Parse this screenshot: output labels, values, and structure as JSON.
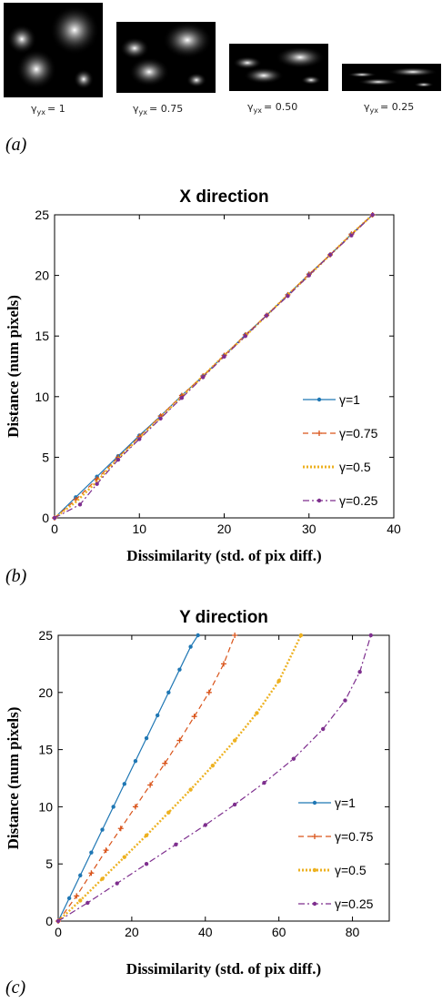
{
  "panel_a": {
    "label": "(a)",
    "tiles": [
      {
        "gamma_symbol": "γ",
        "subscript": "yx",
        "value": "= 1"
      },
      {
        "gamma_symbol": "γ",
        "subscript": "yx",
        "value": "= 0.75"
      },
      {
        "gamma_symbol": "γ",
        "subscript": "yx",
        "value": "= 0.50"
      },
      {
        "gamma_symbol": "γ",
        "subscript": "yx",
        "value": "= 0.25"
      }
    ]
  },
  "panel_b": {
    "label": "(b)"
  },
  "panel_c": {
    "label": "(c)"
  },
  "chart_data": [
    {
      "type": "line",
      "title": "X direction",
      "xlabel": "Dissimilarity (std. of pix diff.)",
      "ylabel": "Distance (num pixels)",
      "xlim": [
        0,
        40
      ],
      "ylim": [
        0,
        25
      ],
      "xticks": [
        0,
        10,
        20,
        30,
        40
      ],
      "yticks": [
        0,
        5,
        10,
        15,
        20,
        25
      ],
      "grid": false,
      "legend_position": "lower-right",
      "series": [
        {
          "name": "γ=1",
          "color": "#1f77b4",
          "style": "solid",
          "marker": "dot",
          "x": [
            0,
            2.5,
            5,
            7.5,
            10,
            12.5,
            15,
            17.5,
            20,
            22.5,
            25,
            27.5,
            30,
            32.5,
            35,
            37.5
          ],
          "y": [
            0,
            1.7,
            3.4,
            5.1,
            6.8,
            8.4,
            10.1,
            11.7,
            13.4,
            15.1,
            16.7,
            18.4,
            20.1,
            21.7,
            23.4,
            25
          ]
        },
        {
          "name": "γ=0.75",
          "color": "#d95319",
          "style": "dashed",
          "marker": "plus",
          "x": [
            0,
            2.5,
            5,
            7.5,
            10,
            12.5,
            15,
            17.5,
            20,
            22.5,
            25,
            27.5,
            30,
            32.5,
            35,
            37.5
          ],
          "y": [
            0,
            1.5,
            3.2,
            5.0,
            6.7,
            8.4,
            10.1,
            11.7,
            13.4,
            15.1,
            16.7,
            18.4,
            20.1,
            21.7,
            23.4,
            25
          ]
        },
        {
          "name": "γ=0.5",
          "color": "#edb120",
          "style": "thick-dotted",
          "marker": "none",
          "x": [
            0,
            2.5,
            5,
            7.5,
            10,
            12.5,
            15,
            17.5,
            20,
            22.5,
            25,
            27.5,
            30,
            32.5,
            35,
            37.5
          ],
          "y": [
            0,
            1.3,
            3.0,
            4.9,
            6.6,
            8.3,
            10.0,
            11.7,
            13.4,
            15.0,
            16.7,
            18.4,
            20.0,
            21.7,
            23.4,
            25
          ]
        },
        {
          "name": "γ=0.25",
          "color": "#7e2f8e",
          "style": "dashdot",
          "marker": "dot",
          "x": [
            0,
            3,
            5,
            7.5,
            10,
            12.5,
            15,
            17.5,
            20,
            22.5,
            25,
            27.5,
            30,
            32.5,
            35,
            37.5
          ],
          "y": [
            0,
            1.1,
            2.8,
            4.8,
            6.5,
            8.2,
            9.9,
            11.6,
            13.3,
            15.0,
            16.7,
            18.3,
            20.0,
            21.7,
            23.3,
            25
          ]
        }
      ]
    },
    {
      "type": "line",
      "title": "Y direction",
      "xlabel": "Dissimilarity (std. of pix diff.)",
      "ylabel": "Distance (num pixels)",
      "xlim": [
        0,
        90
      ],
      "ylim": [
        0,
        25
      ],
      "xticks": [
        0,
        20,
        40,
        60,
        80
      ],
      "yticks": [
        0,
        5,
        10,
        15,
        20,
        25
      ],
      "grid": false,
      "legend_position": "lower-right",
      "series": [
        {
          "name": "γ=1",
          "color": "#1f77b4",
          "style": "solid",
          "marker": "dot",
          "x": [
            0,
            3,
            6,
            9,
            12,
            15,
            18,
            21,
            24,
            27,
            30,
            33,
            36,
            38
          ],
          "y": [
            0,
            2,
            4,
            6,
            8,
            10,
            12,
            14,
            16,
            18,
            20,
            22,
            24,
            25
          ]
        },
        {
          "name": "γ=0.75",
          "color": "#d95319",
          "style": "dashed",
          "marker": "plus",
          "x": [
            0,
            5,
            9,
            13,
            17,
            21,
            25,
            29,
            33,
            37,
            41,
            45,
            48
          ],
          "y": [
            0,
            2.2,
            4.2,
            6.2,
            8.1,
            10.0,
            11.9,
            13.8,
            15.8,
            17.9,
            20.0,
            22.5,
            25
          ]
        },
        {
          "name": "γ=0.5",
          "color": "#edb120",
          "style": "thick-dotted",
          "marker": "dot",
          "x": [
            0,
            6,
            12,
            18,
            24,
            30,
            36,
            42,
            48,
            54,
            60,
            66
          ],
          "y": [
            0,
            1.8,
            3.7,
            5.6,
            7.5,
            9.5,
            11.5,
            13.6,
            15.8,
            18.2,
            21.0,
            25
          ]
        },
        {
          "name": "γ=0.25",
          "color": "#7e2f8e",
          "style": "dashdot",
          "marker": "dot",
          "x": [
            0,
            8,
            16,
            24,
            32,
            40,
            48,
            56,
            64,
            72,
            78,
            82,
            85
          ],
          "y": [
            0,
            1.6,
            3.3,
            5.0,
            6.7,
            8.4,
            10.2,
            12.1,
            14.2,
            16.8,
            19.3,
            21.8,
            25
          ]
        }
      ]
    }
  ]
}
